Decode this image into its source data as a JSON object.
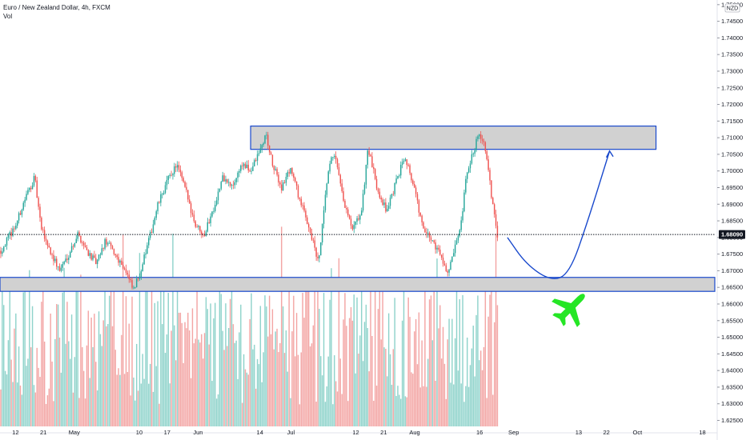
{
  "header": {
    "title": "Euro / New Zealand Dollar, 4h, FXCM",
    "volume_label": "Vol"
  },
  "currency_badge": "NZD",
  "current_price_label": "1.68090",
  "colors": {
    "up": "#26a69a",
    "down": "#ef5350",
    "up_volume": "#8fd3cb",
    "down_volume": "#f3a5a4",
    "zone_fill": "#d1d1d1",
    "zone_border": "#1848cc",
    "projection": "#1848cc",
    "plane": "#25e625",
    "price_badge": "#131722"
  },
  "icons": {
    "annotation": "airplane-icon"
  },
  "chart_data": {
    "type": "candlestick",
    "title": "Euro / New Zealand Dollar, 4h, FXCM",
    "timeframe": "4h",
    "source": "FXCM",
    "y_ticks": [
      "1.62500",
      "1.63000",
      "1.63500",
      "1.64000",
      "1.64500",
      "1.65000",
      "1.65500",
      "1.66000",
      "1.66500",
      "1.67000",
      "1.67500",
      "1.68000",
      "1.68500",
      "1.69000",
      "1.69500",
      "1.70000",
      "1.70500",
      "1.71000",
      "1.71500",
      "1.72000",
      "1.72500",
      "1.73000",
      "1.73500",
      "1.74000",
      "1.74500",
      "1.75000"
    ],
    "ylim": [
      1.6232,
      1.7514
    ],
    "x_tick_labels": [
      "12",
      "21",
      "May",
      "10",
      "17",
      "Jun",
      "14",
      "Jul",
      "12",
      "21",
      "Aug",
      "16",
      "Sep",
      "13",
      "22",
      "Oct",
      "18"
    ],
    "x_tick_units": [
      5,
      14,
      24,
      45,
      54,
      64,
      84,
      94,
      115,
      124,
      134,
      155,
      166,
      187,
      196,
      206,
      227
    ],
    "x_range": [
      0,
      231
    ],
    "last_data_unit": 161,
    "current_price": 1.6809,
    "price_path": [
      [
        0,
        1.676
      ],
      [
        5,
        1.684
      ],
      [
        8,
        1.692
      ],
      [
        11,
        1.698
      ],
      [
        13,
        1.683
      ],
      [
        16,
        1.676
      ],
      [
        19,
        1.67
      ],
      [
        22,
        1.675
      ],
      [
        25,
        1.681
      ],
      [
        28,
        1.676
      ],
      [
        31,
        1.672
      ],
      [
        34,
        1.679
      ],
      [
        37,
        1.675
      ],
      [
        40,
        1.671
      ],
      [
        43,
        1.664
      ],
      [
        45,
        1.669
      ],
      [
        48,
        1.679
      ],
      [
        51,
        1.69
      ],
      [
        54,
        1.697
      ],
      [
        57,
        1.702
      ],
      [
        60,
        1.694
      ],
      [
        63,
        1.684
      ],
      [
        66,
        1.681
      ],
      [
        69,
        1.689
      ],
      [
        72,
        1.698
      ],
      [
        75,
        1.695
      ],
      [
        78,
        1.702
      ],
      [
        81,
        1.7
      ],
      [
        84,
        1.706
      ],
      [
        86,
        1.711
      ],
      [
        88,
        1.702
      ],
      [
        91,
        1.695
      ],
      [
        94,
        1.701
      ],
      [
        97,
        1.691
      ],
      [
        100,
        1.683
      ],
      [
        103,
        1.672
      ],
      [
        106,
        1.699
      ],
      [
        108,
        1.706
      ],
      [
        111,
        1.691
      ],
      [
        114,
        1.682
      ],
      [
        117,
        1.688
      ],
      [
        119,
        1.707
      ],
      [
        122,
        1.695
      ],
      [
        125,
        1.688
      ],
      [
        128,
        1.696
      ],
      [
        131,
        1.705
      ],
      [
        134,
        1.695
      ],
      [
        137,
        1.682
      ],
      [
        140,
        1.679
      ],
      [
        143,
        1.674
      ],
      [
        145,
        1.669
      ],
      [
        147,
        1.676
      ],
      [
        149,
        1.682
      ],
      [
        151,
        1.699
      ],
      [
        153,
        1.705
      ],
      [
        155,
        1.712
      ],
      [
        157,
        1.707
      ],
      [
        159,
        1.693
      ],
      [
        161,
        1.6809
      ]
    ],
    "zones": [
      {
        "name": "resistance-zone",
        "from_x": 81,
        "to_x": 212,
        "low": 1.7065,
        "high": 1.7135
      },
      {
        "name": "support-zone",
        "from_x": 0,
        "to_x": 231,
        "low": 1.6638,
        "high": 1.668
      }
    ],
    "projection_path": [
      [
        164,
        1.68
      ],
      [
        170,
        1.672
      ],
      [
        178,
        1.6669
      ],
      [
        184,
        1.669
      ],
      [
        190,
        1.685
      ],
      [
        197,
        1.706
      ]
    ],
    "volume": {
      "label": "Vol",
      "max_fraction": 0.48
    }
  }
}
